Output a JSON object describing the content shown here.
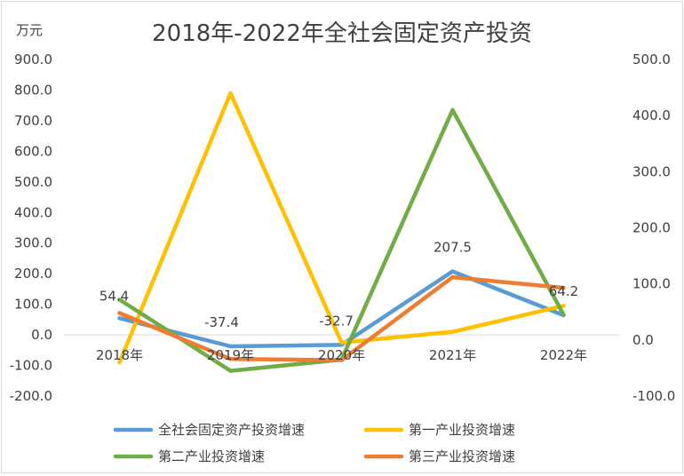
{
  "chart_data": {
    "type": "line",
    "title": "2018年-2022年全社会固定资产投资",
    "unit_label": "万元",
    "categories": [
      "2018年",
      "2019年",
      "2020年",
      "2021年",
      "2022年"
    ],
    "left_axis": {
      "min": -200,
      "max": 900,
      "step": 100,
      "ticks": [
        "900.0",
        "800.0",
        "700.0",
        "600.0",
        "500.0",
        "400.0",
        "300.0",
        "200.0",
        "100.0",
        "0.0",
        "-100.0",
        "-200.0"
      ]
    },
    "right_axis": {
      "min": -100,
      "max": 500,
      "step": 100,
      "ticks": [
        "500.0",
        "400.0",
        "300.0",
        "200.0",
        "100.0",
        "0.0",
        "-100.0"
      ]
    },
    "series": [
      {
        "name": "全社会固定资产投资增速",
        "axis": "left",
        "color": "#5b9bd5",
        "values": [
          54.4,
          -37.4,
          -32.7,
          207.5,
          64.2
        ],
        "labels": [
          "54.4",
          "-37.4",
          "-32.7",
          "207.5",
          "64.2"
        ]
      },
      {
        "name": "第一产业投资增速",
        "axis": "left",
        "color": "#ffc000",
        "values": [
          -90,
          790,
          -25,
          10,
          95
        ]
      },
      {
        "name": "第二产业投资增速",
        "axis": "right",
        "color": "#70ad47",
        "values": [
          72,
          -55,
          -35,
          410,
          45
        ]
      },
      {
        "name": "第三产业投资增速",
        "axis": "right",
        "color": "#ed7d31",
        "values": [
          48,
          -34,
          -36,
          112,
          93
        ]
      }
    ],
    "grid": false,
    "legend_position": "bottom"
  }
}
